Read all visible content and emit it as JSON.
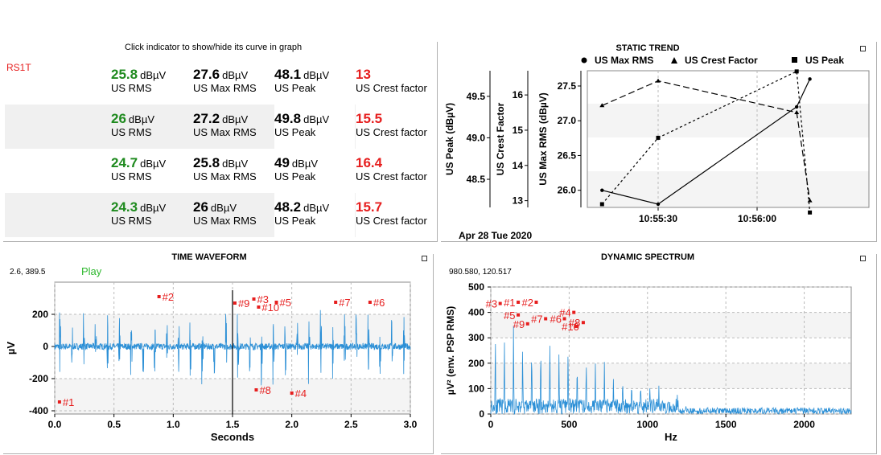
{
  "indicators": {
    "hint": "Click indicator to show/hide its curve in graph",
    "sensor": "RS1T",
    "unit": "dBµV",
    "rows": [
      {
        "rms": "25.8",
        "max_rms": "27.6",
        "peak": "48.1",
        "crest": "13"
      },
      {
        "rms": "26",
        "max_rms": "27.2",
        "peak": "49.8",
        "crest": "15.5"
      },
      {
        "rms": "24.7",
        "max_rms": "25.8",
        "peak": "49",
        "crest": "16.4"
      },
      {
        "rms": "24.3",
        "max_rms": "26",
        "peak": "48.2",
        "crest": "15.7"
      }
    ],
    "labels": {
      "rms": "US RMS",
      "max_rms": "US Max RMS",
      "peak": "US Peak",
      "crest": "US Crest factor"
    }
  },
  "static_trend": {
    "title": "STATIC TREND",
    "legend": [
      "US Max RMS",
      "US Crest Factor",
      "US Peak"
    ],
    "date": "Apr 28 Tue 2020",
    "chart_data": {
      "type": "line",
      "x_ticks": [
        "10:55:30",
        "10:56:00"
      ],
      "axes": [
        {
          "label": "US Peak (dBµV)",
          "ticks": [
            "48.5",
            "49.0",
            "49.5"
          ]
        },
        {
          "label": "US Crest Factor",
          "ticks": [
            "13",
            "14",
            "15",
            "16"
          ]
        },
        {
          "label": "US Max RMS (dBµV)",
          "ticks": [
            "26.0",
            "26.5",
            "27.0",
            "27.5"
          ]
        }
      ],
      "series": [
        {
          "name": "US Max RMS",
          "x": [
            "10:55:13",
            "10:55:30",
            "10:56:12",
            "10:56:16"
          ],
          "y": [
            26.0,
            25.8,
            27.2,
            27.6
          ]
        },
        {
          "name": "US Crest Factor",
          "x": [
            "10:55:13",
            "10:55:30",
            "10:56:12",
            "10:56:16"
          ],
          "y": [
            15.7,
            16.4,
            15.5,
            13
          ]
        },
        {
          "name": "US Peak",
          "x": [
            "10:55:13",
            "10:55:30",
            "10:56:12",
            "10:56:16"
          ],
          "y": [
            48.2,
            49.0,
            49.8,
            48.1
          ]
        }
      ]
    }
  },
  "waveform": {
    "title": "TIME WAVEFORM",
    "cursor": "2.6, 389.5",
    "play": "Play",
    "chart_data": {
      "type": "line",
      "xlabel": "Seconds",
      "ylabel": "µV",
      "xlim": [
        0,
        3.0
      ],
      "ylim": [
        -420,
        400
      ],
      "x_ticks": [
        "0.0",
        "0.5",
        "1.0",
        "1.5",
        "2.0",
        "2.5",
        "3.0"
      ],
      "y_ticks": [
        "-400",
        "-200",
        "0",
        "200"
      ],
      "markers": [
        {
          "label": "#1",
          "x": 0.04,
          "y": -345
        },
        {
          "label": "#2",
          "x": 0.88,
          "y": 310
        },
        {
          "label": "#9",
          "x": 1.52,
          "y": 270
        },
        {
          "label": "#3",
          "x": 1.68,
          "y": 295
        },
        {
          "label": "#10",
          "x": 1.72,
          "y": 245
        },
        {
          "label": "#5",
          "x": 1.87,
          "y": 275
        },
        {
          "label": "#7",
          "x": 2.37,
          "y": 275
        },
        {
          "label": "#6",
          "x": 2.66,
          "y": 275
        },
        {
          "label": "#8",
          "x": 1.7,
          "y": -270
        },
        {
          "label": "#4",
          "x": 2.0,
          "y": -290
        }
      ]
    }
  },
  "spectrum": {
    "title": "DYNAMIC SPECTRUM",
    "cursor": "980.580, 120.517",
    "chart_data": {
      "type": "bar",
      "xlabel": "Hz",
      "ylabel": "µV² (env. PSP RMS)",
      "xlim": [
        0,
        2300
      ],
      "ylim": [
        0,
        500
      ],
      "x_ticks": [
        "0",
        "500",
        "1000",
        "1500",
        "2000"
      ],
      "y_ticks": [
        "0",
        "100",
        "200",
        "300",
        "400",
        "500"
      ],
      "markers": [
        {
          "label": "#3",
          "x": 60,
          "y": 435
        },
        {
          "label": "#1",
          "x": 175,
          "y": 440
        },
        {
          "label": "#5",
          "x": 175,
          "y": 390
        },
        {
          "label": "#9",
          "x": 235,
          "y": 355
        },
        {
          "label": "#2",
          "x": 290,
          "y": 440
        },
        {
          "label": "#7",
          "x": 350,
          "y": 375
        },
        {
          "label": "#6",
          "x": 470,
          "y": 375
        },
        {
          "label": "#4",
          "x": 530,
          "y": 400
        },
        {
          "label": "#8",
          "x": 590,
          "y": 360
        },
        {
          "label": "#10",
          "x": 545,
          "y": 345
        }
      ]
    }
  }
}
